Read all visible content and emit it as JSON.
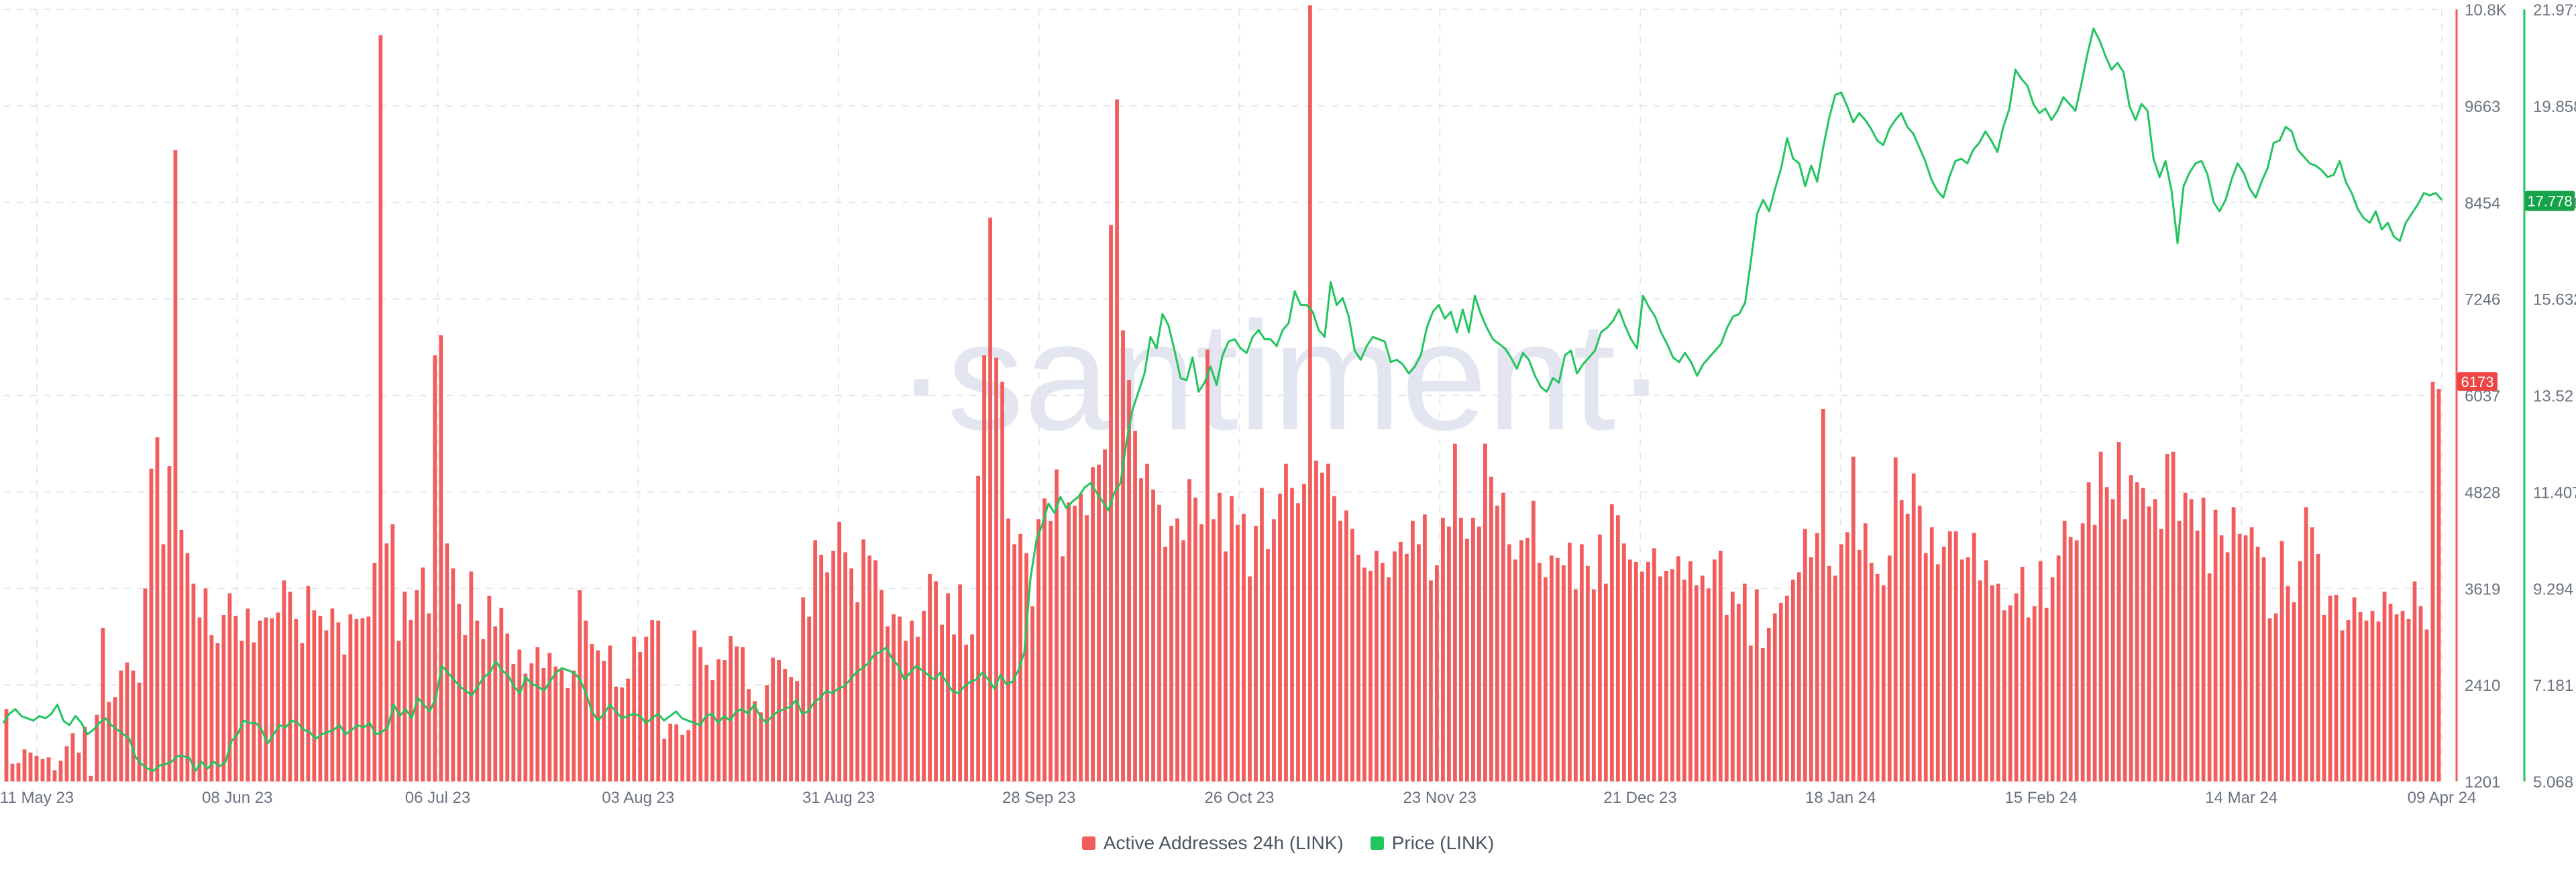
{
  "chart_data": {
    "type": "bar+line",
    "watermark": "·santiment·",
    "x_ticks": [
      "11 May 23",
      "08 Jun 23",
      "06 Jul 23",
      "03 Aug 23",
      "31 Aug 23",
      "28 Sep 23",
      "26 Oct 23",
      "23 Nov 23",
      "21 Dec 23",
      "18 Jan 24",
      "15 Feb 24",
      "14 Mar 24",
      "09 Apr 24"
    ],
    "left_axis": {
      "min": 1201,
      "max": 10800,
      "ticks": [
        "10.8K",
        "9663",
        "8454",
        "7246",
        "6037",
        "4828",
        "3619",
        "2410",
        "1201"
      ]
    },
    "right_axis": {
      "min": 5.068,
      "max": 21.971,
      "ticks": [
        "21.971",
        "19.858",
        "17.778",
        "15.632",
        "13.52",
        "11.407",
        "9.294",
        "7.181",
        "5.068"
      ]
    },
    "current_labels": {
      "active_addresses": "6173",
      "price": "17.778"
    },
    "series": [
      {
        "name": "Active Addresses 24h (LINK)",
        "type": "bar",
        "color": "#f25c5c",
        "values": [
          2100,
          1420,
          1430,
          1600,
          1560,
          1520,
          1480,
          1500,
          1340,
          1460,
          1640,
          1800,
          1560,
          1880,
          1270,
          2030,
          3110,
          2190,
          2250,
          2580,
          2680,
          2580,
          2430,
          3600,
          5090,
          5480,
          4150,
          5120,
          9050,
          4330,
          4040,
          3660,
          3240,
          3600,
          3020,
          2920,
          3270,
          3540,
          3260,
          2950,
          3350,
          2930,
          3200,
          3240,
          3230,
          3300,
          3700,
          3560,
          3220,
          2920,
          3630,
          3330,
          3260,
          3080,
          3350,
          3180,
          2780,
          3280,
          3220,
          3230,
          3250,
          3920,
          10480,
          4160,
          4400,
          2950,
          3560,
          3210,
          3580,
          3860,
          3290,
          6500,
          6750,
          4160,
          3850,
          3410,
          3020,
          3810,
          3200,
          2970,
          3510,
          3130,
          3360,
          3040,
          2660,
          2840,
          2540,
          2670,
          2870,
          2610,
          2800,
          2630,
          2590,
          2360,
          2580,
          3580,
          3200,
          2910,
          2830,
          2700,
          2890,
          2380,
          2370,
          2480,
          3000,
          2810,
          3000,
          3210,
          3200,
          1730,
          1920,
          1910,
          1780,
          1840,
          3080,
          2870,
          2650,
          2460,
          2720,
          2710,
          3010,
          2880,
          2870,
          2350,
          2200,
          2060,
          2400,
          2740,
          2710,
          2600,
          2500,
          2450,
          3490,
          3250,
          4200,
          4020,
          3800,
          4070,
          4430,
          4050,
          3850,
          3430,
          4210,
          4010,
          3950,
          3580,
          3130,
          3280,
          3250,
          2950,
          3200,
          3000,
          3320,
          3780,
          3690,
          3150,
          3540,
          3030,
          3650,
          2900,
          3030,
          5000,
          6500,
          8210,
          6470,
          6170,
          4470,
          4150,
          4280,
          4040,
          3380,
          4460,
          4720,
          4440,
          5080,
          4000,
          4670,
          4630,
          4780,
          4510,
          5110,
          5140,
          5330,
          8120,
          9680,
          6810,
          6190,
          5560,
          4970,
          5150,
          4830,
          4640,
          4120,
          4380,
          4470,
          4200,
          4960,
          4730,
          4400,
          6570,
          4460,
          4790,
          4060,
          4750,
          4390,
          4530,
          3750,
          4380,
          4850,
          4090,
          4460,
          4780,
          5150,
          4850,
          4660,
          4900,
          10850,
          5190,
          5040,
          5150,
          4750,
          4440,
          4570,
          4340,
          4020,
          3860,
          3820,
          4070,
          3920,
          3740,
          4060,
          4180,
          4030,
          4440,
          4150,
          4520,
          3700,
          3890,
          4480,
          4370,
          5400,
          4480,
          4220,
          4480,
          4370,
          5400,
          4990,
          4630,
          4790,
          4150,
          3960,
          4200,
          4230,
          4690,
          3920,
          3740,
          4010,
          3980,
          3890,
          4170,
          3590,
          4150,
          3880,
          3590,
          4270,
          3660,
          4650,
          4510,
          4160,
          3960,
          3930,
          3810,
          3930,
          4100,
          3750,
          3820,
          3840,
          4000,
          3710,
          3940,
          3640,
          3760,
          3600,
          3960,
          4070,
          3270,
          3560,
          3410,
          3660,
          2890,
          3590,
          2860,
          3110,
          3290,
          3420,
          3510,
          3710,
          3800,
          4340,
          3990,
          4290,
          5830,
          3880,
          3760,
          4150,
          4300,
          5240,
          4080,
          4410,
          3920,
          3780,
          3640,
          4010,
          5230,
          4700,
          4530,
          5030,
          4630,
          4040,
          4360,
          3900,
          4120,
          4310,
          4310,
          3960,
          3990,
          4290,
          3700,
          3950,
          3640,
          3660,
          3330,
          3390,
          3540,
          3870,
          3240,
          3380,
          3940,
          3360,
          3740,
          4010,
          4440,
          4240,
          4200,
          4410,
          4920,
          4390,
          5300,
          4860,
          4710,
          5420,
          4460,
          5010,
          4920,
          4850,
          4620,
          4710,
          4340,
          5270,
          5300,
          4440,
          4790,
          4710,
          4320,
          4730,
          3790,
          4580,
          4260,
          4050,
          4610,
          4280,
          4260,
          4360,
          4120,
          3990,
          3230,
          3290,
          4190,
          3630,
          3430,
          3940,
          4610,
          4360,
          4030,
          3270,
          3510,
          3520,
          3080,
          3210,
          3490,
          3310,
          3200,
          3320,
          3190,
          3560,
          3410,
          3280,
          3320,
          3220,
          3690,
          3380,
          3090,
          6170,
          6080
        ]
      },
      {
        "name": "Price (LINK)",
        "type": "line",
        "color": "#22c55e",
        "values": [
          6.35,
          6.55,
          6.65,
          6.5,
          6.45,
          6.4,
          6.5,
          6.45,
          6.55,
          6.75,
          6.4,
          6.3,
          6.5,
          6.35,
          6.1,
          6.2,
          6.35,
          6.45,
          6.3,
          6.2,
          6.1,
          6.0,
          5.6,
          5.45,
          5.35,
          5.3,
          5.42,
          5.45,
          5.5,
          5.62,
          5.62,
          5.58,
          5.3,
          5.5,
          5.35,
          5.5,
          5.4,
          5.5,
          5.95,
          6.1,
          6.4,
          6.35,
          6.35,
          6.2,
          5.9,
          6.1,
          6.3,
          6.25,
          6.4,
          6.35,
          6.2,
          6.15,
          6.0,
          6.1,
          6.15,
          6.2,
          6.3,
          6.1,
          6.2,
          6.3,
          6.25,
          6.35,
          6.1,
          6.15,
          6.25,
          6.75,
          6.5,
          6.65,
          6.45,
          6.9,
          6.75,
          6.6,
          6.9,
          7.6,
          7.45,
          7.3,
          7.15,
          7.05,
          6.95,
          7.15,
          7.35,
          7.45,
          7.7,
          7.5,
          7.4,
          7.15,
          7.0,
          7.35,
          7.2,
          7.15,
          7.05,
          7.25,
          7.45,
          7.55,
          7.5,
          7.45,
          7.3,
          7.0,
          6.6,
          6.4,
          6.55,
          6.75,
          6.6,
          6.45,
          6.5,
          6.55,
          6.5,
          6.35,
          6.45,
          6.55,
          6.4,
          6.5,
          6.6,
          6.45,
          6.4,
          6.35,
          6.3,
          6.5,
          6.55,
          6.35,
          6.5,
          6.4,
          6.6,
          6.65,
          6.55,
          6.75,
          6.5,
          6.35,
          6.5,
          6.6,
          6.65,
          6.7,
          6.85,
          6.55,
          6.6,
          6.8,
          6.9,
          7.05,
          7.0,
          7.1,
          7.15,
          7.3,
          7.45,
          7.55,
          7.65,
          7.85,
          7.9,
          8.0,
          7.75,
          7.6,
          7.3,
          7.45,
          7.6,
          7.5,
          7.4,
          7.3,
          7.45,
          7.25,
          7.05,
          7.0,
          7.15,
          7.25,
          7.3,
          7.45,
          7.3,
          7.1,
          7.4,
          7.2,
          7.25,
          7.5,
          7.9,
          9.5,
          10.35,
          10.7,
          11.15,
          10.95,
          11.3,
          11.05,
          11.2,
          11.3,
          11.5,
          11.6,
          11.4,
          11.2,
          11.0,
          11.4,
          11.6,
          12.5,
          13.2,
          13.6,
          14.0,
          14.8,
          14.55,
          15.3,
          15.05,
          14.5,
          13.9,
          13.85,
          14.35,
          13.6,
          13.8,
          14.15,
          13.75,
          14.4,
          14.7,
          14.75,
          14.55,
          14.45,
          14.8,
          14.95,
          14.75,
          14.75,
          14.6,
          14.95,
          15.1,
          15.8,
          15.5,
          15.5,
          15.35,
          14.95,
          14.8,
          16.0,
          15.5,
          15.65,
          15.25,
          14.5,
          14.3,
          14.6,
          14.8,
          14.75,
          14.7,
          14.25,
          14.3,
          14.2,
          14.0,
          14.15,
          14.4,
          15.0,
          15.35,
          15.5,
          15.2,
          15.35,
          14.9,
          15.4,
          14.9,
          15.7,
          15.3,
          15.0,
          14.75,
          14.65,
          14.55,
          14.35,
          14.1,
          14.45,
          14.3,
          13.95,
          13.7,
          13.6,
          13.9,
          13.8,
          14.4,
          14.5,
          14.0,
          14.2,
          14.35,
          14.5,
          14.9,
          15.0,
          15.15,
          15.4,
          15.05,
          14.75,
          14.55,
          15.7,
          15.45,
          15.25,
          14.9,
          14.65,
          14.35,
          14.25,
          14.45,
          14.25,
          13.95,
          14.2,
          14.35,
          14.5,
          14.65,
          15.0,
          15.25,
          15.3,
          15.55,
          16.5,
          17.5,
          17.8,
          17.55,
          18.05,
          18.5,
          19.15,
          18.7,
          18.6,
          18.1,
          18.55,
          18.2,
          18.95,
          19.6,
          20.1,
          20.15,
          19.85,
          19.5,
          19.7,
          19.55,
          19.35,
          19.1,
          19.0,
          19.35,
          19.55,
          19.7,
          19.4,
          19.25,
          18.95,
          18.65,
          18.25,
          18.0,
          17.85,
          18.3,
          18.65,
          18.7,
          18.6,
          18.9,
          19.05,
          19.3,
          19.1,
          18.85,
          19.4,
          19.8,
          20.65,
          20.45,
          20.3,
          19.9,
          19.7,
          19.8,
          19.55,
          19.75,
          20.05,
          19.9,
          19.75,
          20.35,
          21.0,
          21.55,
          21.3,
          20.95,
          20.65,
          20.8,
          20.6,
          19.85,
          19.55,
          19.9,
          19.75,
          18.7,
          18.3,
          18.65,
          18.0,
          16.85,
          18.1,
          18.4,
          18.6,
          18.65,
          18.35,
          17.75,
          17.55,
          17.8,
          18.25,
          18.6,
          18.4,
          18.05,
          17.85,
          18.2,
          18.5,
          19.05,
          19.1,
          19.4,
          19.3,
          18.9,
          18.75,
          18.6,
          18.55,
          18.45,
          18.3,
          18.35,
          18.65,
          18.2,
          17.95,
          17.6,
          17.4,
          17.3,
          17.55,
          17.15,
          17.3,
          17.0,
          16.9,
          17.3,
          17.5,
          17.7,
          17.95,
          17.9,
          17.95,
          17.8
        ]
      }
    ]
  }
}
